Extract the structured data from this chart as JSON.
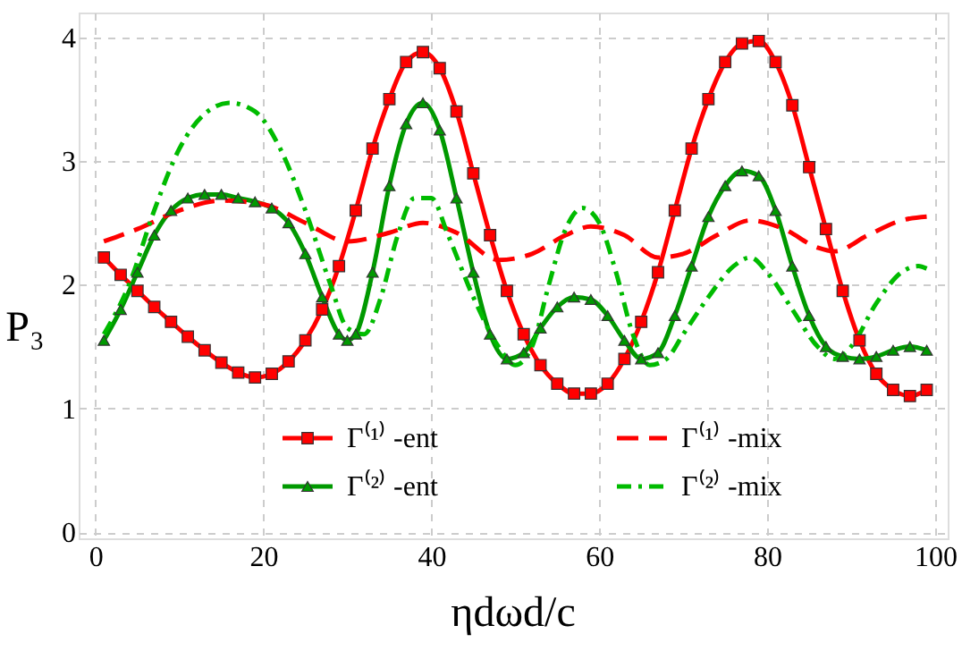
{
  "chart_data": {
    "type": "line",
    "xlabel": "ηdωd/c",
    "ylabel": "P₃",
    "xlim": [
      -2,
      101.5
    ],
    "ylim": [
      -0.05,
      4.2
    ],
    "xticks": [
      0,
      20,
      40,
      60,
      80,
      100
    ],
    "yticks": [
      0,
      1,
      2,
      3,
      4
    ],
    "grid": true,
    "legend": "bottom",
    "series": [
      {
        "name": "Γ⁽¹⁾ -ent",
        "color": "#ff0000",
        "marker": "square",
        "line_style": "solid",
        "x": [
          1,
          3,
          5,
          7,
          9,
          11,
          13,
          15,
          17,
          19,
          21,
          23,
          25,
          27,
          29,
          31,
          33,
          35,
          37,
          39,
          41,
          43,
          45,
          47,
          49,
          51,
          53,
          55,
          57,
          59,
          61,
          63,
          65,
          67,
          69,
          71,
          73,
          75,
          77,
          79,
          81,
          83,
          85,
          87,
          89,
          91,
          93,
          95,
          97,
          99
        ],
        "values": [
          2.22,
          2.08,
          1.95,
          1.82,
          1.7,
          1.58,
          1.47,
          1.37,
          1.29,
          1.25,
          1.28,
          1.38,
          1.55,
          1.8,
          2.15,
          2.6,
          3.1,
          3.5,
          3.8,
          3.88,
          3.75,
          3.4,
          2.9,
          2.4,
          1.95,
          1.6,
          1.35,
          1.2,
          1.12,
          1.12,
          1.2,
          1.4,
          1.7,
          2.1,
          2.6,
          3.1,
          3.5,
          3.8,
          3.95,
          3.97,
          3.8,
          3.45,
          2.95,
          2.45,
          1.95,
          1.55,
          1.28,
          1.15,
          1.1,
          1.15
        ]
      },
      {
        "name": "Γ⁽²⁾ -ent",
        "color": "#009900",
        "marker": "triangle",
        "line_style": "solid",
        "x": [
          1,
          3,
          5,
          7,
          9,
          11,
          13,
          15,
          17,
          19,
          21,
          23,
          25,
          27,
          29,
          30,
          31,
          33,
          35,
          37,
          39,
          41,
          43,
          45,
          47,
          49,
          51,
          53,
          55,
          57,
          59,
          61,
          63,
          65,
          67,
          69,
          71,
          73,
          75,
          77,
          79,
          81,
          83,
          85,
          87,
          89,
          91,
          93,
          95,
          97,
          99
        ],
        "values": [
          1.55,
          1.8,
          2.1,
          2.4,
          2.6,
          2.7,
          2.73,
          2.73,
          2.7,
          2.67,
          2.62,
          2.5,
          2.25,
          1.9,
          1.6,
          1.55,
          1.6,
          2.1,
          2.8,
          3.3,
          3.47,
          3.25,
          2.7,
          2.1,
          1.6,
          1.4,
          1.45,
          1.65,
          1.82,
          1.9,
          1.88,
          1.75,
          1.55,
          1.4,
          1.45,
          1.75,
          2.15,
          2.55,
          2.8,
          2.92,
          2.88,
          2.6,
          2.15,
          1.75,
          1.5,
          1.42,
          1.4,
          1.42,
          1.47,
          1.5,
          1.47
        ]
      },
      {
        "name": "Γ⁽¹⁾ -mix",
        "color": "#ff0000",
        "marker": "none",
        "line_style": "dashed",
        "x": [
          1,
          5,
          10,
          15,
          20,
          25,
          30,
          35,
          39,
          43,
          48,
          52,
          56,
          59,
          63,
          67,
          70,
          74,
          78,
          82,
          86,
          88,
          92,
          96,
          99
        ],
        "values": [
          2.35,
          2.45,
          2.6,
          2.68,
          2.65,
          2.5,
          2.35,
          2.42,
          2.5,
          2.42,
          2.2,
          2.25,
          2.4,
          2.47,
          2.4,
          2.22,
          2.25,
          2.4,
          2.52,
          2.45,
          2.3,
          2.27,
          2.4,
          2.52,
          2.55
        ]
      },
      {
        "name": "Γ⁽²⁾ -mix",
        "color": "#00bb00",
        "marker": "none",
        "line_style": "dashdot",
        "x": [
          1,
          4,
          7,
          10,
          13,
          16,
          19,
          22,
          25,
          28,
          30,
          32,
          34,
          36,
          38,
          40,
          42,
          45,
          48,
          50,
          52,
          54,
          56,
          58,
          60,
          62,
          64,
          66,
          68,
          70,
          73,
          76,
          78,
          80,
          83,
          86,
          88,
          90,
          93,
          96,
          98,
          99
        ],
        "values": [
          1.6,
          2.0,
          2.6,
          3.1,
          3.38,
          3.47,
          3.4,
          3.1,
          2.6,
          2.0,
          1.65,
          1.6,
          1.9,
          2.4,
          2.7,
          2.7,
          2.4,
          1.9,
          1.5,
          1.35,
          1.5,
          2.0,
          2.45,
          2.62,
          2.5,
          2.1,
          1.6,
          1.35,
          1.4,
          1.6,
          1.9,
          2.15,
          2.22,
          2.1,
          1.8,
          1.5,
          1.4,
          1.5,
          1.85,
          2.1,
          2.15,
          2.13
        ]
      }
    ]
  }
}
